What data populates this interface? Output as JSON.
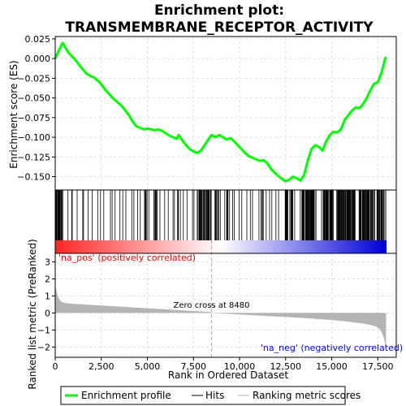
{
  "chart_data": {
    "type": "line",
    "title_lines": [
      "Enrichment plot:",
      "TRANSMEMBRANE_RECEPTOR_ACTIVITY"
    ],
    "xlabel": "Rank in Ordered Dataset",
    "xlim": [
      0,
      18500
    ],
    "x_ticks": [
      0,
      2500,
      5000,
      7500,
      10000,
      12500,
      15000,
      17500
    ],
    "x_tick_labels": [
      "0",
      "2,500",
      "5,000",
      "7,500",
      "10,000",
      "12,500",
      "15,000",
      "17,500"
    ],
    "es_panel": {
      "ylabel": "Enrichment score (ES)",
      "ylim": [
        -0.167,
        0.028
      ],
      "y_ticks": [
        0.025,
        0.0,
        -0.025,
        -0.05,
        -0.075,
        -0.1,
        -0.125,
        -0.15
      ],
      "y_tick_labels": [
        "0.025",
        "0.000",
        "−0.025",
        "−0.050",
        "−0.075",
        "−0.100",
        "−0.125",
        "−0.150"
      ],
      "series_color": "#00ff00",
      "profile": [
        [
          0,
          0.0
        ],
        [
          150,
          0.008
        ],
        [
          300,
          0.015
        ],
        [
          400,
          0.02
        ],
        [
          550,
          0.014
        ],
        [
          700,
          0.008
        ],
        [
          900,
          0.003
        ],
        [
          1100,
          -0.002
        ],
        [
          1300,
          -0.008
        ],
        [
          1500,
          -0.014
        ],
        [
          1700,
          -0.019
        ],
        [
          1900,
          -0.022
        ],
        [
          2100,
          -0.024
        ],
        [
          2400,
          -0.03
        ],
        [
          2600,
          -0.036
        ],
        [
          2800,
          -0.042
        ],
        [
          3000,
          -0.047
        ],
        [
          3200,
          -0.052
        ],
        [
          3400,
          -0.056
        ],
        [
          3600,
          -0.06
        ],
        [
          3800,
          -0.066
        ],
        [
          4000,
          -0.072
        ],
        [
          4200,
          -0.08
        ],
        [
          4400,
          -0.086
        ],
        [
          4600,
          -0.088
        ],
        [
          4800,
          -0.09
        ],
        [
          5000,
          -0.089
        ],
        [
          5200,
          -0.09
        ],
        [
          5400,
          -0.091
        ],
        [
          5600,
          -0.09
        ],
        [
          5800,
          -0.092
        ],
        [
          6000,
          -0.095
        ],
        [
          6200,
          -0.098
        ],
        [
          6400,
          -0.1
        ],
        [
          6600,
          -0.102
        ],
        [
          6700,
          -0.097
        ],
        [
          6900,
          -0.104
        ],
        [
          7100,
          -0.11
        ],
        [
          7300,
          -0.115
        ],
        [
          7500,
          -0.118
        ],
        [
          7700,
          -0.12
        ],
        [
          7900,
          -0.117
        ],
        [
          8100,
          -0.11
        ],
        [
          8300,
          -0.103
        ],
        [
          8480,
          -0.097
        ],
        [
          8700,
          -0.1
        ],
        [
          8900,
          -0.097
        ],
        [
          9100,
          -0.1
        ],
        [
          9300,
          -0.103
        ],
        [
          9500,
          -0.101
        ],
        [
          9700,
          -0.105
        ],
        [
          9900,
          -0.11
        ],
        [
          10100,
          -0.115
        ],
        [
          10300,
          -0.12
        ],
        [
          10500,
          -0.124
        ],
        [
          10700,
          -0.126
        ],
        [
          10900,
          -0.128
        ],
        [
          11100,
          -0.13
        ],
        [
          11300,
          -0.129
        ],
        [
          11500,
          -0.133
        ],
        [
          11700,
          -0.14
        ],
        [
          11900,
          -0.145
        ],
        [
          12100,
          -0.149
        ],
        [
          12300,
          -0.153
        ],
        [
          12500,
          -0.156
        ],
        [
          12700,
          -0.154
        ],
        [
          12900,
          -0.15
        ],
        [
          13100,
          -0.152
        ],
        [
          13300,
          -0.155
        ],
        [
          13500,
          -0.148
        ],
        [
          13700,
          -0.13
        ],
        [
          13900,
          -0.115
        ],
        [
          14100,
          -0.11
        ],
        [
          14300,
          -0.112
        ],
        [
          14500,
          -0.117
        ],
        [
          14700,
          -0.105
        ],
        [
          14900,
          -0.097
        ],
        [
          15100,
          -0.093
        ],
        [
          15300,
          -0.094
        ],
        [
          15500,
          -0.09
        ],
        [
          15700,
          -0.078
        ],
        [
          15900,
          -0.072
        ],
        [
          16100,
          -0.066
        ],
        [
          16300,
          -0.062
        ],
        [
          16500,
          -0.063
        ],
        [
          16700,
          -0.058
        ],
        [
          16900,
          -0.05
        ],
        [
          17100,
          -0.04
        ],
        [
          17300,
          -0.032
        ],
        [
          17500,
          -0.03
        ],
        [
          17700,
          -0.018
        ],
        [
          17900,
          0.0
        ],
        [
          17950,
          0.002
        ]
      ]
    },
    "hits_panel": {
      "hit_color": "#000000"
    },
    "rank_panel": {
      "ylabel": "Ranked list metric (PreRanked)",
      "ylim": [
        -2.6,
        3.5
      ],
      "y_ticks": [
        3,
        2,
        1,
        0,
        -1,
        -2
      ],
      "y_tick_labels": [
        "3",
        "2",
        "1",
        "0",
        "−1",
        "−2"
      ],
      "fill_color": "#b4b4b4",
      "zero_cross": 8480,
      "zero_cross_label": "Zero cross at 8480",
      "pos_label": "'na_pos' (positively correlated)",
      "neg_label": "'na_neg' (negatively correlated)",
      "pos_label_color": "#ff0000",
      "neg_label_color": "#0000ff"
    },
    "legend": {
      "position": "bottom",
      "items": [
        {
          "label": "Enrichment profile",
          "color": "#00ff00"
        },
        {
          "label": "Hits",
          "color": "#000000"
        },
        {
          "label": "Ranking metric scores",
          "color": "#b4b4b4"
        }
      ]
    },
    "grid": true,
    "n_genes": 17950
  }
}
